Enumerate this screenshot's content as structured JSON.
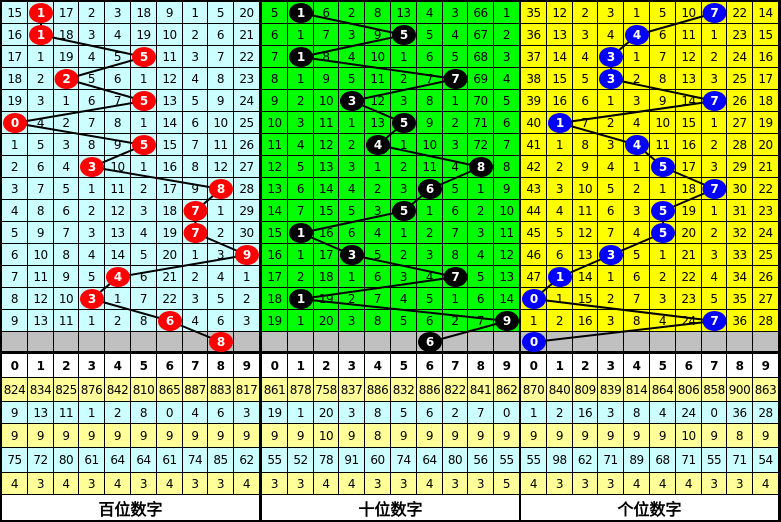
{
  "colors": {
    "line": "#000000",
    "gray_row": "#c0c0c0",
    "stat_yellow": "#ffff99",
    "stat_cyan": "#ccffff"
  },
  "panels": [
    {
      "label": "百位数字",
      "bg": "#ccffff",
      "ball_color": "#ff0000",
      "rows": [
        [
          15,
          1,
          17,
          2,
          3,
          18,
          9,
          1,
          5,
          20
        ],
        [
          16,
          1,
          18,
          3,
          4,
          19,
          10,
          2,
          6,
          21
        ],
        [
          17,
          1,
          19,
          4,
          5,
          5,
          11,
          3,
          7,
          22
        ],
        [
          18,
          2,
          2,
          5,
          6,
          1,
          12,
          4,
          8,
          23
        ],
        [
          19,
          3,
          1,
          6,
          7,
          5,
          13,
          5,
          9,
          24
        ],
        [
          0,
          4,
          2,
          7,
          8,
          1,
          14,
          6,
          10,
          25
        ],
        [
          1,
          5,
          3,
          8,
          9,
          5,
          15,
          7,
          11,
          26
        ],
        [
          2,
          6,
          4,
          3,
          10,
          1,
          16,
          8,
          12,
          27
        ],
        [
          3,
          7,
          5,
          1,
          11,
          2,
          17,
          9,
          8,
          28
        ],
        [
          4,
          8,
          6,
          2,
          12,
          3,
          18,
          7,
          1,
          29
        ],
        [
          5,
          9,
          7,
          3,
          13,
          4,
          19,
          7,
          2,
          30
        ],
        [
          6,
          10,
          8,
          4,
          14,
          5,
          20,
          1,
          3,
          9
        ],
        [
          7,
          11,
          9,
          5,
          4,
          6,
          21,
          2,
          4,
          1
        ],
        [
          8,
          12,
          10,
          3,
          1,
          7,
          22,
          3,
          5,
          2
        ],
        [
          9,
          13,
          11,
          1,
          2,
          8,
          6,
          4,
          6,
          3
        ]
      ],
      "hits": [
        1,
        1,
        5,
        2,
        5,
        0,
        5,
        3,
        8,
        7,
        7,
        9,
        4,
        3,
        6
      ],
      "predicted": 8,
      "header": [
        "0",
        "1",
        "2",
        "3",
        "4",
        "5",
        "6",
        "7",
        "8",
        "9"
      ],
      "stats": [
        [
          "824",
          "834",
          "825",
          "876",
          "842",
          "810",
          "865",
          "887",
          "883",
          "817"
        ],
        [
          "9",
          "13",
          "11",
          "1",
          "2",
          "8",
          "0",
          "4",
          "6",
          "3"
        ],
        [
          "9",
          "9",
          "9",
          "9",
          "9",
          "9",
          "9",
          "9",
          "9",
          "9"
        ],
        [
          "75",
          "72",
          "80",
          "61",
          "64",
          "64",
          "61",
          "74",
          "85",
          "62"
        ],
        [
          "4",
          "3",
          "4",
          "3",
          "4",
          "3",
          "4",
          "3",
          "3",
          "4"
        ]
      ]
    },
    {
      "label": "十位数字",
      "bg": "#00ff00",
      "ball_color": "#000000",
      "rows": [
        [
          5,
          1,
          6,
          2,
          8,
          13,
          4,
          3,
          66,
          1
        ],
        [
          6,
          1,
          7,
          3,
          9,
          5,
          5,
          4,
          67,
          2
        ],
        [
          7,
          1,
          8,
          4,
          10,
          1,
          6,
          5,
          68,
          3
        ],
        [
          8,
          1,
          9,
          5,
          11,
          2,
          7,
          7,
          69,
          4
        ],
        [
          9,
          2,
          10,
          3,
          12,
          3,
          8,
          1,
          70,
          5
        ],
        [
          10,
          3,
          11,
          1,
          13,
          5,
          9,
          2,
          71,
          6
        ],
        [
          11,
          4,
          12,
          2,
          4,
          1,
          10,
          3,
          72,
          7
        ],
        [
          12,
          5,
          13,
          3,
          1,
          2,
          11,
          4,
          8,
          8
        ],
        [
          13,
          6,
          14,
          4,
          2,
          3,
          6,
          5,
          1,
          9
        ],
        [
          14,
          7,
          15,
          5,
          3,
          5,
          1,
          6,
          2,
          10
        ],
        [
          15,
          1,
          16,
          6,
          4,
          1,
          2,
          7,
          3,
          11
        ],
        [
          16,
          1,
          17,
          3,
          5,
          2,
          3,
          8,
          4,
          12
        ],
        [
          17,
          2,
          18,
          1,
          6,
          3,
          4,
          7,
          5,
          13
        ],
        [
          18,
          1,
          19,
          2,
          7,
          4,
          5,
          1,
          6,
          14
        ],
        [
          19,
          1,
          20,
          3,
          8,
          5,
          6,
          2,
          7,
          9
        ]
      ],
      "hits": [
        1,
        5,
        1,
        7,
        3,
        5,
        4,
        8,
        6,
        5,
        1,
        3,
        7,
        1,
        9
      ],
      "predicted": 6,
      "header": [
        "0",
        "1",
        "2",
        "3",
        "4",
        "5",
        "6",
        "7",
        "8",
        "9"
      ],
      "stats": [
        [
          "861",
          "878",
          "758",
          "837",
          "886",
          "832",
          "886",
          "822",
          "841",
          "862"
        ],
        [
          "19",
          "1",
          "20",
          "3",
          "8",
          "5",
          "6",
          "2",
          "7",
          "0"
        ],
        [
          "9",
          "9",
          "10",
          "9",
          "8",
          "9",
          "9",
          "9",
          "9",
          "9"
        ],
        [
          "55",
          "52",
          "78",
          "91",
          "60",
          "74",
          "64",
          "80",
          "56",
          "55"
        ],
        [
          "3",
          "3",
          "4",
          "4",
          "3",
          "3",
          "4",
          "3",
          "3",
          "5"
        ]
      ]
    },
    {
      "label": "个位数字",
      "bg": "#ffff00",
      "ball_color": "#0000ff",
      "rows": [
        [
          35,
          12,
          2,
          3,
          1,
          5,
          10,
          7,
          22,
          14
        ],
        [
          36,
          13,
          3,
          4,
          4,
          6,
          11,
          1,
          23,
          15
        ],
        [
          37,
          14,
          4,
          3,
          1,
          7,
          12,
          2,
          24,
          16
        ],
        [
          38,
          15,
          5,
          3,
          2,
          8,
          13,
          3,
          25,
          17
        ],
        [
          39,
          16,
          6,
          1,
          3,
          9,
          14,
          7,
          26,
          18
        ],
        [
          40,
          1,
          7,
          2,
          4,
          10,
          15,
          1,
          27,
          19
        ],
        [
          41,
          1,
          8,
          3,
          4,
          11,
          16,
          2,
          28,
          20
        ],
        [
          42,
          2,
          9,
          4,
          1,
          5,
          17,
          3,
          29,
          21
        ],
        [
          43,
          3,
          10,
          5,
          2,
          1,
          18,
          7,
          30,
          22
        ],
        [
          44,
          4,
          11,
          6,
          3,
          5,
          19,
          1,
          31,
          23
        ],
        [
          45,
          5,
          12,
          7,
          4,
          5,
          20,
          2,
          32,
          24
        ],
        [
          46,
          6,
          13,
          3,
          5,
          1,
          21,
          3,
          33,
          25
        ],
        [
          47,
          1,
          14,
          1,
          6,
          2,
          22,
          4,
          34,
          26
        ],
        [
          0,
          1,
          15,
          2,
          7,
          3,
          23,
          5,
          35,
          27
        ],
        [
          1,
          2,
          16,
          3,
          8,
          4,
          24,
          7,
          36,
          28
        ]
      ],
      "hits": [
        7,
        4,
        3,
        3,
        7,
        1,
        4,
        5,
        7,
        5,
        5,
        3,
        1,
        0,
        7
      ],
      "predicted": 0,
      "header": [
        "0",
        "1",
        "2",
        "3",
        "4",
        "5",
        "6",
        "7",
        "8",
        "9"
      ],
      "stats": [
        [
          "870",
          "840",
          "809",
          "839",
          "814",
          "864",
          "806",
          "858",
          "900",
          "863"
        ],
        [
          "1",
          "2",
          "16",
          "3",
          "8",
          "4",
          "24",
          "0",
          "36",
          "28"
        ],
        [
          "9",
          "9",
          "9",
          "9",
          "9",
          "9",
          "10",
          "9",
          "8",
          "9"
        ],
        [
          "55",
          "98",
          "62",
          "71",
          "89",
          "68",
          "71",
          "55",
          "71",
          "54"
        ],
        [
          "4",
          "3",
          "3",
          "3",
          "4",
          "4",
          "4",
          "3",
          "3",
          "4"
        ]
      ]
    }
  ]
}
